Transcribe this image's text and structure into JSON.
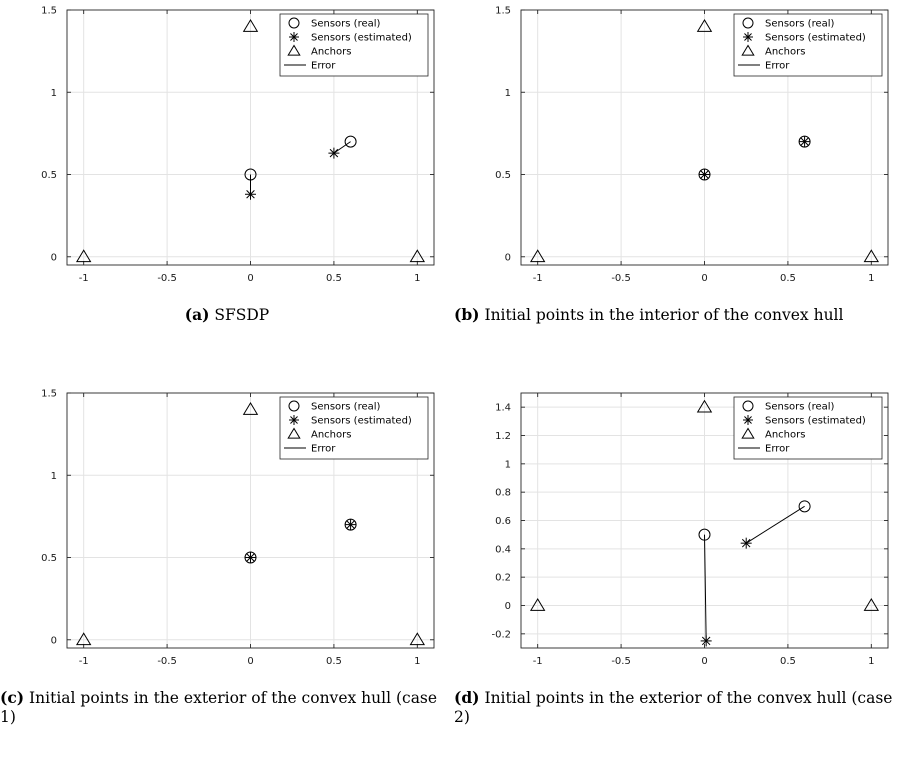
{
  "chart_data": [
    {
      "type": "scatter",
      "caption_label": "(a)",
      "caption_text": "SFSDP",
      "xlim": [
        -1.1,
        1.1
      ],
      "ylim": [
        -0.05,
        1.5
      ],
      "xticks": [
        -1,
        -0.5,
        0,
        0.5,
        1
      ],
      "xtick_labels": [
        "-1",
        "-0.5",
        "0",
        "0.5",
        "1"
      ],
      "yticks": [
        0,
        0.5,
        1,
        1.5
      ],
      "ytick_labels": [
        "0",
        "0.5",
        "1",
        "1.5"
      ],
      "grid": true,
      "legend_position": "top-right",
      "legend": [
        "Sensors (real)",
        "Sensors (estimated)",
        "Anchors",
        "Error"
      ],
      "sensors_real": [
        [
          0,
          0.5
        ],
        [
          0.6,
          0.7
        ]
      ],
      "sensors_estimated": [
        [
          0,
          0.38
        ],
        [
          0.5,
          0.63
        ]
      ],
      "anchors": [
        [
          -1,
          0
        ],
        [
          0,
          1.4
        ],
        [
          1,
          0
        ]
      ]
    },
    {
      "type": "scatter",
      "caption_label": "(b)",
      "caption_text": "Initial points in the interior of the convex hull",
      "xlim": [
        -1.1,
        1.1
      ],
      "ylim": [
        -0.05,
        1.5
      ],
      "xticks": [
        -1,
        -0.5,
        0,
        0.5,
        1
      ],
      "xtick_labels": [
        "-1",
        "-0.5",
        "0",
        "0.5",
        "1"
      ],
      "yticks": [
        0,
        0.5,
        1,
        1.5
      ],
      "ytick_labels": [
        "0",
        "0.5",
        "1",
        "1.5"
      ],
      "grid": true,
      "legend_position": "top-right",
      "legend": [
        "Sensors (real)",
        "Sensors (estimated)",
        "Anchors",
        "Error"
      ],
      "sensors_real": [
        [
          0,
          0.5
        ],
        [
          0.6,
          0.7
        ]
      ],
      "sensors_estimated": [
        [
          0,
          0.5
        ],
        [
          0.6,
          0.7
        ]
      ],
      "anchors": [
        [
          -1,
          0
        ],
        [
          0,
          1.4
        ],
        [
          1,
          0
        ]
      ]
    },
    {
      "type": "scatter",
      "caption_label": "(c)",
      "caption_text": "Initial points in the exterior of the convex hull (case 1)",
      "xlim": [
        -1.1,
        1.1
      ],
      "ylim": [
        -0.05,
        1.5
      ],
      "xticks": [
        -1,
        -0.5,
        0,
        0.5,
        1
      ],
      "xtick_labels": [
        "-1",
        "-0.5",
        "0",
        "0.5",
        "1"
      ],
      "yticks": [
        0,
        0.5,
        1,
        1.5
      ],
      "ytick_labels": [
        "0",
        "0.5",
        "1",
        "1.5"
      ],
      "grid": true,
      "legend_position": "top-right",
      "legend": [
        "Sensors (real)",
        "Sensors (estimated)",
        "Anchors",
        "Error"
      ],
      "sensors_real": [
        [
          0,
          0.5
        ],
        [
          0.6,
          0.7
        ]
      ],
      "sensors_estimated": [
        [
          0,
          0.5
        ],
        [
          0.6,
          0.7
        ]
      ],
      "anchors": [
        [
          -1,
          0
        ],
        [
          0,
          1.4
        ],
        [
          1,
          0
        ]
      ]
    },
    {
      "type": "scatter",
      "caption_label": "(d)",
      "caption_text": "Initial points in the exterior of the convex hull (case 2)",
      "xlim": [
        -1.1,
        1.1
      ],
      "ylim": [
        -0.3,
        1.5
      ],
      "xticks": [
        -1,
        -0.5,
        0,
        0.5,
        1
      ],
      "xtick_labels": [
        "-1",
        "-0.5",
        "0",
        "0.5",
        "1"
      ],
      "yticks": [
        -0.2,
        0,
        0.2,
        0.4,
        0.6,
        0.8,
        1,
        1.2,
        1.4
      ],
      "ytick_labels": [
        "-0.2",
        "0",
        "0.2",
        "0.4",
        "0.6",
        "0.8",
        "1",
        "1.2",
        "1.4"
      ],
      "grid": true,
      "legend_position": "top-right",
      "legend": [
        "Sensors (real)",
        "Sensors (estimated)",
        "Anchors",
        "Error"
      ],
      "sensors_real": [
        [
          0,
          0.5
        ],
        [
          0.6,
          0.7
        ]
      ],
      "sensors_estimated": [
        [
          0.01,
          -0.25
        ],
        [
          0.25,
          0.44
        ]
      ],
      "anchors": [
        [
          -1,
          0
        ],
        [
          0,
          1.4
        ],
        [
          1,
          0
        ]
      ]
    }
  ]
}
